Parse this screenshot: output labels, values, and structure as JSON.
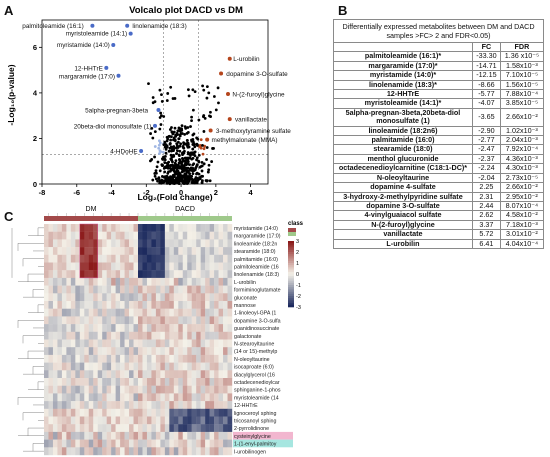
{
  "panel_labels": {
    "a": "A",
    "b": "B",
    "c": "C"
  },
  "chart_data": [
    {
      "type": "scatter",
      "title": "Volcalo plot DACD vs DM",
      "xlabel": "Log₂(Fold change)",
      "ylabel": "-Log₁₀(p-value)",
      "xlim": [
        -8,
        5
      ],
      "ylim": [
        0,
        7.2
      ],
      "xticks": [
        "-8",
        "-6",
        "-4",
        "-2",
        "0",
        "2",
        "4"
      ],
      "yticks": [
        "0",
        "2",
        "4",
        "6"
      ],
      "threshold_lines": {
        "x": [
          -1,
          1
        ],
        "y": 1.3
      },
      "colors": {
        "non_significant": "#000000",
        "down": "#4a6bc7",
        "up": "#b5451c",
        "light_down": "#9fb6e3"
      },
      "labeled_points": [
        {
          "name": "palmitoleamide (16:1)",
          "x": -5.1,
          "y": 6.95,
          "group": "down"
        },
        {
          "name": "linolenamide (18:3)",
          "x": -3.1,
          "y": 6.95,
          "group": "down"
        },
        {
          "name": "myristoleamide (14:1)",
          "x": -2.9,
          "y": 6.6,
          "group": "down"
        },
        {
          "name": "myristamide (14:0)",
          "x": -3.9,
          "y": 6.1,
          "group": "down"
        },
        {
          "name": "12-HHTrE",
          "x": -4.3,
          "y": 5.1,
          "group": "down"
        },
        {
          "name": "margaramide (17:0)",
          "x": -3.6,
          "y": 4.75,
          "group": "down"
        },
        {
          "name": "5alpha-pregnan-3beta",
          "x": -1.3,
          "y": 3.25,
          "group": "down"
        },
        {
          "name": "20beta-diol monosulfate (1)",
          "x": -1.5,
          "y": 2.55,
          "group": "down"
        },
        {
          "name": "4-HDoHE",
          "x": -2.3,
          "y": 1.45,
          "group": "down"
        },
        {
          "name": "L-urobilin",
          "x": 2.8,
          "y": 5.5,
          "group": "up"
        },
        {
          "name": "dopamine 3-O-sulfate",
          "x": 2.3,
          "y": 4.85,
          "group": "up"
        },
        {
          "name": "N-(2-furoyl)glycine",
          "x": 2.7,
          "y": 3.95,
          "group": "up"
        },
        {
          "name": "vanillactate",
          "x": 2.8,
          "y": 2.85,
          "group": "up"
        },
        {
          "name": "3-methoxytyramine sulfate",
          "x": 1.7,
          "y": 2.35,
          "group": "up"
        },
        {
          "name": "methylmalonate (MMA)",
          "x": 1.5,
          "y": 1.95,
          "group": "up"
        }
      ]
    },
    {
      "type": "heatmap",
      "groups": [
        "DM",
        "DACD"
      ],
      "legend_title": "class",
      "color_scale": {
        "ticks": [
          "3",
          "2",
          "1",
          "0",
          "-1",
          "-2",
          "-3"
        ],
        "high": "#8b1a1a",
        "mid": "#f4f1e8",
        "low": "#1c2a5e"
      },
      "group_colors": {
        "DM": "#a34a4a",
        "DACD": "#9fc98b"
      },
      "rows": [
        "myristamide (14:0)",
        "margaramide (17:0)",
        "linoleamide (18:2n",
        "stearamide (18:0)",
        "palmitamide (16:0)",
        "palmitoleamide (16",
        "linolenamide (18:3)",
        "L-urobilin",
        "formiminoglutamate",
        "gluconate",
        "mannose",
        "1-linoleoyl-GPA (1",
        "dopamine 3-O-sulfa",
        "guanidinosuccinate",
        "galactonate",
        "N-stearoyltaurine",
        "(14 or 15)-methylp",
        "N-oleoyltaurine",
        "isocaproate (6:0)",
        "diacylglycerol (16",
        "octadecenedioylcar",
        "sphinganine-1-phos",
        "myristoleamide (14",
        "12-HHTrE",
        "lignoceroyl sphing",
        "tricosanoyl sphing",
        "2-pyrrolidinone",
        "cysteinylglycine",
        "1-(1-enyl-palmitoy",
        "I-urobilinogen"
      ]
    }
  ],
  "table": {
    "caption": "Differentially expressed metabolites between DM and DACD samples >FC> 2 and FDR<0.05)",
    "columns": [
      "",
      "FC",
      "FDR"
    ],
    "rows": [
      {
        "name": "palmitoleamide (16:1)*",
        "fc": "-33.30",
        "fdr": "1.36 x10⁻⁵"
      },
      {
        "name": "margaramide (17:0)*",
        "fc": "-14.71",
        "fdr": "1.58x10⁻³"
      },
      {
        "name": "myristamide (14:0)*",
        "fc": "-12.15",
        "fdr": "7.10x10⁻⁵"
      },
      {
        "name": "linolenamide (18:3)*",
        "fc": "-8.66",
        "fdr": "1.56x10⁻⁵"
      },
      {
        "name": "12-HHTrE",
        "fc": "-5.77",
        "fdr": "7.88x10⁻⁴"
      },
      {
        "name": "myristoleamide (14:1)*",
        "fc": "-4.07",
        "fdr": "3.85x10⁻⁵"
      },
      {
        "name": "5alpha-pregnan-3beta,20beta-diol monosulfate (1)",
        "fc": "-3.65",
        "fdr": "2.66x10⁻²"
      },
      {
        "name": "linoleamide (18:2n6)",
        "fc": "-2.90",
        "fdr": "1.02x10⁻³"
      },
      {
        "name": "palmitamide (16:0)",
        "fc": "-2.77",
        "fdr": "2.04x10⁻³"
      },
      {
        "name": "stearamide (18:0)",
        "fc": "-2.47",
        "fdr": "7.92x10⁻⁴"
      },
      {
        "name": "menthol glucuronide",
        "fc": "-2.37",
        "fdr": "4.36x10⁻³"
      },
      {
        "name": "octadecenedioylcarnitine (C18:1-DC)*",
        "fc": "-2.24",
        "fdr": "4.30x10⁻³"
      },
      {
        "name": "N-oleoyltaurine",
        "fc": "-2.04",
        "fdr": "2.73x10⁻⁵"
      },
      {
        "name": "dopamine 4-sulfate",
        "fc": "2.25",
        "fdr": "2.66x10⁻²"
      },
      {
        "name": "3-hydroxy-2-methylpyridine sulfate",
        "fc": "2.31",
        "fdr": "2.95x10⁻²"
      },
      {
        "name": "dopamine 3-O-sulfate",
        "fc": "2.44",
        "fdr": "8.07x10⁻⁴"
      },
      {
        "name": "4-vinylguaiacol sulfate",
        "fc": "2.62",
        "fdr": "4.58x10⁻²"
      },
      {
        "name": "N-(2-furoyl)glycine",
        "fc": "3.37",
        "fdr": "7.18x10⁻³"
      },
      {
        "name": "vanillactate",
        "fc": "5.72",
        "fdr": "3.01x10⁻²"
      },
      {
        "name": "L-urobilin",
        "fc": "6.41",
        "fdr": "4.04x10⁻⁴"
      }
    ]
  }
}
